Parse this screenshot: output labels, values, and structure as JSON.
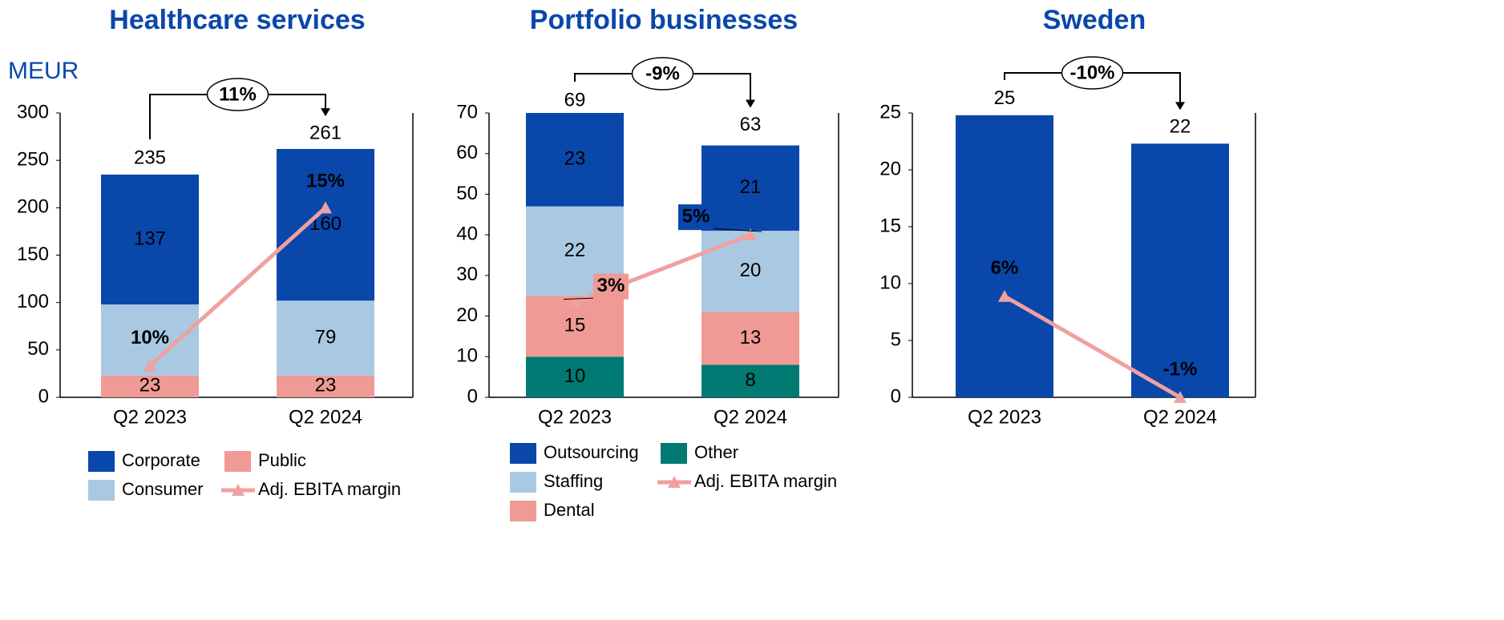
{
  "chart_data": [
    {
      "type": "bar",
      "stacked": true,
      "title": "Healthcare services",
      "unit": "MEUR",
      "categories": [
        "Q2 2023",
        "Q2 2024"
      ],
      "series": [
        {
          "name": "Public",
          "color": "#f09a95",
          "values": [
            23,
            23
          ]
        },
        {
          "name": "Consumer",
          "color": "#a9c9e3",
          "values": [
            75,
            79
          ],
          "value_labels": [
            null,
            "79"
          ]
        },
        {
          "name": "Corporate",
          "color": "#0a47ab",
          "values": [
            137,
            160
          ]
        },
        {
          "name": "Adj. EBITA margin",
          "type": "line",
          "axis": "y2",
          "marker": "triangle",
          "color": "#f0a0a0",
          "values": [
            10,
            15
          ],
          "value_labels": [
            "10%",
            "15%"
          ]
        }
      ],
      "totals": [
        235,
        261
      ],
      "growth_label": "11%",
      "ylim": [
        0,
        300
      ],
      "yticks": [
        0,
        50,
        100,
        150,
        200,
        250,
        300
      ],
      "y2lim": [
        9,
        18
      ]
    },
    {
      "type": "bar",
      "stacked": true,
      "title": "Portfolio businesses",
      "categories": [
        "Q2 2023",
        "Q2 2024"
      ],
      "series": [
        {
          "name": "Other",
          "color": "#007a72",
          "values": [
            10,
            8
          ]
        },
        {
          "name": "Dental",
          "color": "#f09a95",
          "values": [
            15,
            13
          ]
        },
        {
          "name": "Staffing",
          "color": "#a9c9e3",
          "values": [
            22,
            20
          ]
        },
        {
          "name": "Outsourcing",
          "color": "#0a47ab",
          "values": [
            23,
            21
          ]
        },
        {
          "name": "Adj. EBITA margin",
          "type": "line",
          "axis": "y2",
          "marker": "triangle",
          "color": "#f0a0a0",
          "values": [
            3,
            5
          ],
          "value_labels": [
            "3%",
            "5%"
          ]
        }
      ],
      "totals": [
        69,
        63
      ],
      "growth_label": "-9%",
      "ylim": [
        0,
        70
      ],
      "yticks": [
        0,
        10,
        20,
        30,
        40,
        50,
        60,
        70
      ],
      "y2lim": [
        0.2,
        8.6
      ]
    },
    {
      "type": "bar",
      "stacked": true,
      "title": "Sweden",
      "categories": [
        "Q2 2023",
        "Q2 2024"
      ],
      "series": [
        {
          "color": "#0a47ab",
          "values": [
            24.8,
            22.3
          ],
          "value_labels": [
            "25",
            "22"
          ]
        },
        {
          "type": "line",
          "axis": "y2",
          "marker": "triangle",
          "color": "#f0a0a0",
          "values": [
            6,
            -1
          ],
          "value_labels": [
            "6%",
            "-1%"
          ]
        }
      ],
      "growth_label": "-10%",
      "ylim": [
        0,
        25
      ],
      "yticks": [
        0,
        5,
        10,
        15,
        20,
        25
      ],
      "y2lim": [
        -1,
        18.7
      ]
    }
  ]
}
